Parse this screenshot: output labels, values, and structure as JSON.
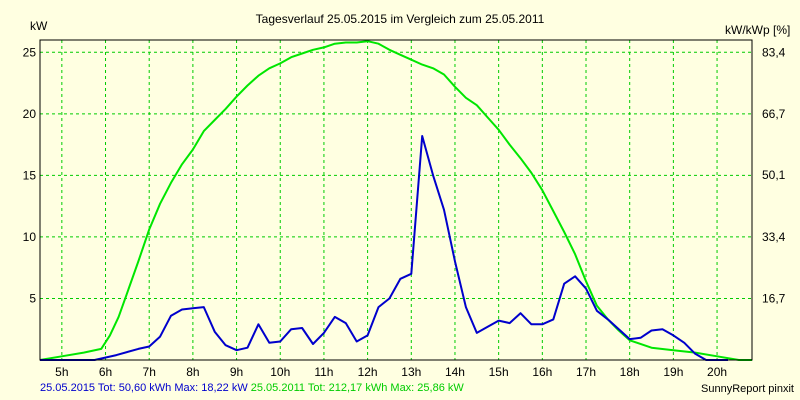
{
  "chart_data": {
    "type": "line",
    "title": "Tagesverlauf 25.05.2015 im Vergleich zum 25.05.2011",
    "ylabel_left": "kW",
    "ylabel_right": "kW/kWp [%]",
    "ylim": [
      0,
      26
    ],
    "xlim": [
      4.5,
      20.8
    ],
    "y_ticks": [
      5,
      10,
      15,
      20,
      25
    ],
    "y_tick_labels": [
      "5",
      "10",
      "15",
      "20",
      "25"
    ],
    "y2_ticks": [
      16.7,
      33.4,
      50.1,
      66.7,
      83.4
    ],
    "y2_tick_labels": [
      "16,7",
      "33,4",
      "50,1",
      "66,7",
      "83,4"
    ],
    "y2_per_kw": 3.336,
    "x_ticks": [
      5,
      6,
      7,
      8,
      9,
      10,
      11,
      12,
      13,
      14,
      15,
      16,
      17,
      18,
      19,
      20
    ],
    "x_tick_labels": [
      "5h",
      "6h",
      "7h",
      "8h",
      "9h",
      "10h",
      "11h",
      "12h",
      "13h",
      "14h",
      "15h",
      "16h",
      "17h",
      "18h",
      "19h",
      "20h"
    ],
    "grid": true,
    "colors": {
      "background": "#ffffe1",
      "grid": "#00cc00",
      "series_2015": "#0000cc",
      "series_2011": "#00e600"
    },
    "series": [
      {
        "name": "25.05.2015",
        "color": "#0000cc",
        "x": [
          4.5,
          5.75,
          6.25,
          6.75,
          7.0,
          7.25,
          7.5,
          7.75,
          8.0,
          8.25,
          8.5,
          8.75,
          9.0,
          9.25,
          9.5,
          9.75,
          10.0,
          10.25,
          10.5,
          10.75,
          11.0,
          11.25,
          11.5,
          11.75,
          12.0,
          12.25,
          12.5,
          12.75,
          13.0,
          13.25,
          13.5,
          13.75,
          14.0,
          14.25,
          14.5,
          14.75,
          15.0,
          15.25,
          15.5,
          15.75,
          16.0,
          16.25,
          16.5,
          16.75,
          17.0,
          17.25,
          17.5,
          17.75,
          18.0,
          18.25,
          18.5,
          18.75,
          19.0,
          19.25,
          19.5,
          19.75,
          20.25
        ],
        "y": [
          0.0,
          0.0,
          0.4,
          0.9,
          1.1,
          1.9,
          3.6,
          4.1,
          4.2,
          4.3,
          2.3,
          1.2,
          0.8,
          1.0,
          2.9,
          1.4,
          1.5,
          2.5,
          2.6,
          1.3,
          2.2,
          3.5,
          3.0,
          1.5,
          2.0,
          4.3,
          5.0,
          6.6,
          7.0,
          18.2,
          15.0,
          12.2,
          8.0,
          4.3,
          2.2,
          2.7,
          3.2,
          3.0,
          3.8,
          2.9,
          2.9,
          3.3,
          6.2,
          6.8,
          5.8,
          4.0,
          3.3,
          2.5,
          1.7,
          1.8,
          2.4,
          2.5,
          2.0,
          1.4,
          0.5,
          0.0,
          0.0
        ]
      },
      {
        "name": "25.05.2011",
        "color": "#00e600",
        "x": [
          4.5,
          5.0,
          5.5,
          5.9,
          6.1,
          6.3,
          6.5,
          6.75,
          7.0,
          7.25,
          7.5,
          7.75,
          8.0,
          8.25,
          8.5,
          8.75,
          9.0,
          9.25,
          9.5,
          9.75,
          10.0,
          10.25,
          10.5,
          10.75,
          11.0,
          11.25,
          11.5,
          11.75,
          12.0,
          12.25,
          12.5,
          12.75,
          13.0,
          13.25,
          13.5,
          13.75,
          14.0,
          14.25,
          14.5,
          14.75,
          15.0,
          15.25,
          15.5,
          15.75,
          16.0,
          16.25,
          16.5,
          16.75,
          17.0,
          17.25,
          17.5,
          17.75,
          18.0,
          18.5,
          19.0,
          19.5,
          20.0,
          20.5,
          20.8
        ],
        "y": [
          0.0,
          0.3,
          0.6,
          0.9,
          2.0,
          3.5,
          5.5,
          8.0,
          10.6,
          12.7,
          14.4,
          15.9,
          17.1,
          18.6,
          19.5,
          20.4,
          21.4,
          22.3,
          23.1,
          23.7,
          24.1,
          24.6,
          24.9,
          25.2,
          25.4,
          25.7,
          25.8,
          25.8,
          25.9,
          25.7,
          25.2,
          24.8,
          24.4,
          24.0,
          23.7,
          23.2,
          22.2,
          21.3,
          20.7,
          19.7,
          18.7,
          17.5,
          16.4,
          15.2,
          13.8,
          12.1,
          10.4,
          8.6,
          6.4,
          4.4,
          3.3,
          2.4,
          1.6,
          1.0,
          0.8,
          0.6,
          0.3,
          0.0,
          0.0
        ]
      }
    ],
    "footer": {
      "s2015_text": "25.05.2015 Tot: 50,60 kWh Max: 18,22 kW",
      "s2011_text": "25.05.2011 Tot: 212,17 kWh Max: 25,86 kW",
      "credit": "SunnyReport pinxit"
    }
  }
}
